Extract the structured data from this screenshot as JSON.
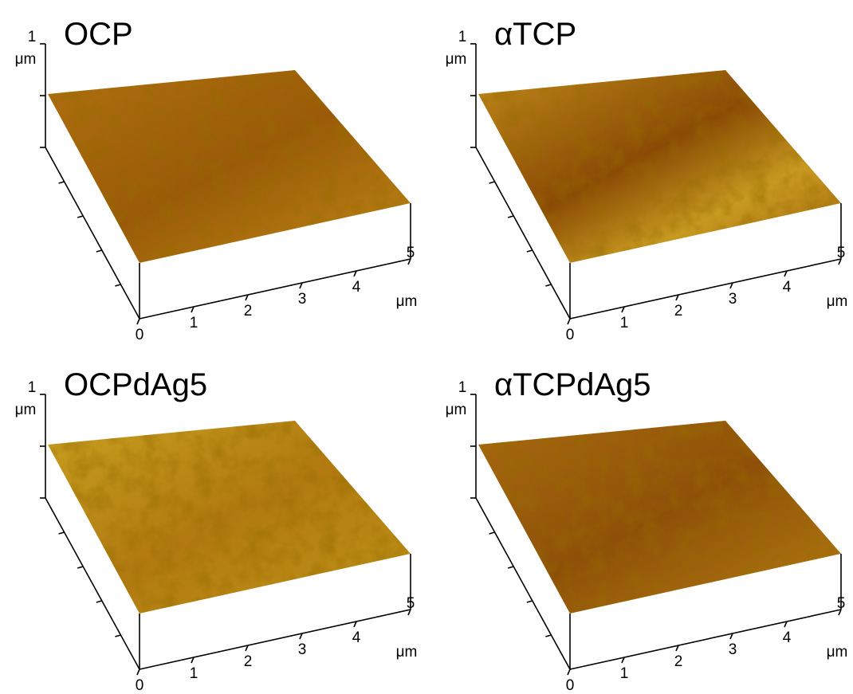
{
  "panels": [
    {
      "title": "OCP",
      "z_max": "1",
      "z_unit": "μm",
      "x_ticks": [
        "0",
        "1",
        "2",
        "3",
        "4",
        "5"
      ],
      "x_unit": "μm"
    },
    {
      "title": "αTCP",
      "z_max": "1",
      "z_unit": "μm",
      "x_ticks": [
        "0",
        "1",
        "2",
        "3",
        "4",
        "5"
      ],
      "x_unit": "μm"
    },
    {
      "title": "OCPdAg5",
      "z_max": "1",
      "z_unit": "μm",
      "x_ticks": [
        "0",
        "1",
        "2",
        "3",
        "4",
        "5"
      ],
      "x_unit": "μm"
    },
    {
      "title": "αTCPdAg5",
      "z_max": "1",
      "z_unit": "μm",
      "x_ticks": [
        "0",
        "1",
        "2",
        "3",
        "4",
        "5"
      ],
      "x_unit": "μm"
    }
  ]
}
